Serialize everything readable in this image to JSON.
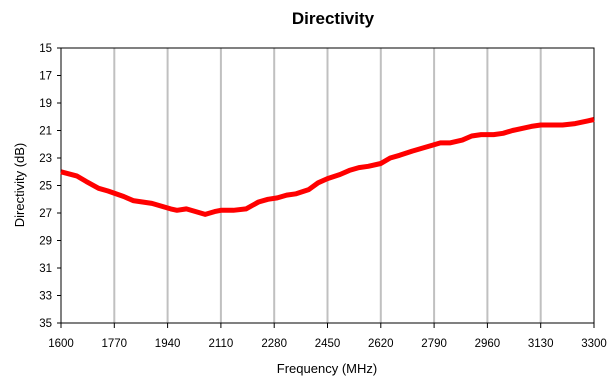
{
  "chart_data": {
    "type": "line",
    "title": "Directivity",
    "xlabel": "Frequency (MHz)",
    "ylabel": "Directivity (dB)",
    "xlim": [
      1600,
      3300
    ],
    "ylim": [
      15,
      35
    ],
    "y_inverted": true,
    "grid": {
      "vertical": true,
      "horizontal": false
    },
    "x_ticks": [
      1600,
      1770,
      1940,
      2110,
      2280,
      2450,
      2620,
      2790,
      2960,
      3130,
      3300
    ],
    "y_ticks": [
      15,
      17,
      19,
      21,
      23,
      25,
      27,
      29,
      31,
      33,
      35
    ],
    "series": [
      {
        "color": "#ff0000",
        "x": [
          1600,
          1650,
          1680,
          1720,
          1750,
          1800,
          1830,
          1860,
          1890,
          1920,
          1950,
          1970,
          2000,
          2030,
          2060,
          2090,
          2110,
          2150,
          2190,
          2230,
          2260,
          2290,
          2320,
          2350,
          2390,
          2420,
          2450,
          2490,
          2520,
          2550,
          2580,
          2620,
          2650,
          2680,
          2720,
          2750,
          2780,
          2810,
          2840,
          2880,
          2910,
          2940,
          2980,
          3010,
          3040,
          3080,
          3100,
          3130,
          3170,
          3200,
          3240,
          3280,
          3300
        ],
        "y": [
          24.0,
          24.3,
          24.7,
          25.2,
          25.4,
          25.8,
          26.1,
          26.2,
          26.3,
          26.5,
          26.7,
          26.8,
          26.7,
          26.9,
          27.1,
          26.9,
          26.8,
          26.8,
          26.7,
          26.2,
          26.0,
          25.9,
          25.7,
          25.6,
          25.3,
          24.8,
          24.5,
          24.2,
          23.9,
          23.7,
          23.6,
          23.4,
          23.0,
          22.8,
          22.5,
          22.3,
          22.1,
          21.9,
          21.9,
          21.7,
          21.4,
          21.3,
          21.3,
          21.2,
          21.0,
          20.8,
          20.7,
          20.6,
          20.6,
          20.6,
          20.5,
          20.3,
          20.2
        ]
      }
    ]
  }
}
